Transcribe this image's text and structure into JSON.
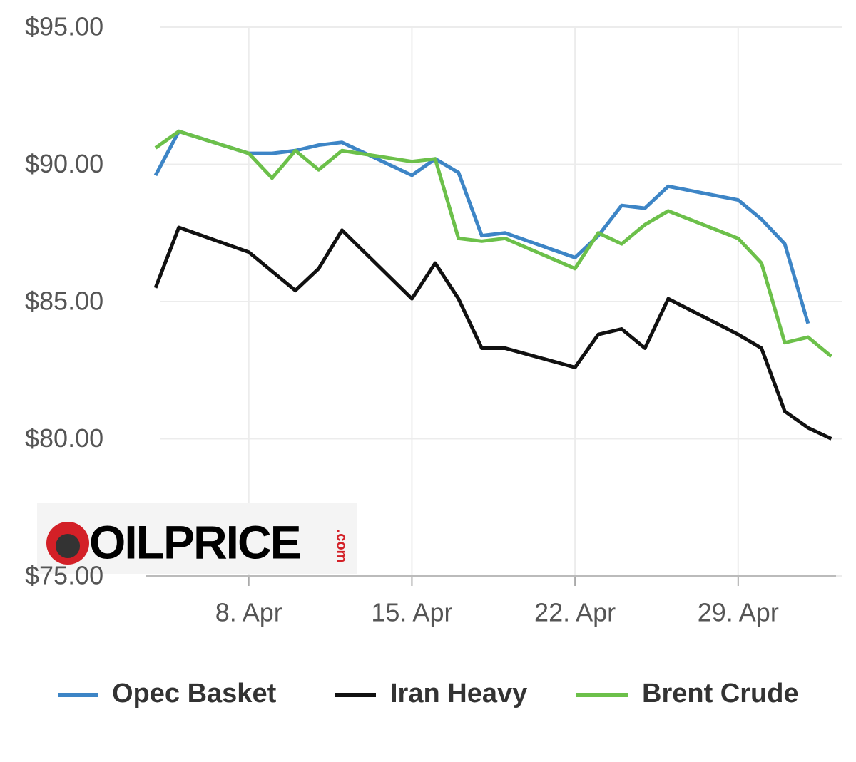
{
  "chart_data": {
    "type": "line",
    "logo": "OILPRICE",
    "logo_suffix": ".com",
    "x": [
      4,
      5,
      8,
      9,
      10,
      11,
      12,
      15,
      16,
      17,
      18,
      19,
      22,
      23,
      24,
      25,
      26,
      29,
      30,
      31,
      32,
      33
    ],
    "series": [
      {
        "name": "Opec Basket",
        "color": "#3d85c6",
        "values": [
          89.6,
          91.2,
          90.4,
          90.4,
          90.5,
          90.7,
          90.8,
          89.6,
          90.2,
          89.7,
          87.4,
          87.5,
          86.6,
          87.4,
          88.5,
          88.4,
          89.2,
          88.7,
          88.0,
          87.1,
          84.2,
          null
        ]
      },
      {
        "name": "Iran Heavy",
        "color": "#111111",
        "values": [
          85.5,
          87.7,
          86.8,
          86.1,
          85.4,
          86.2,
          87.6,
          85.1,
          86.4,
          85.1,
          83.3,
          83.3,
          82.6,
          83.8,
          84.0,
          83.3,
          85.1,
          83.8,
          83.3,
          81.0,
          80.4,
          80.0
        ]
      },
      {
        "name": "Brent Crude",
        "color": "#6cc04a",
        "values": [
          90.6,
          91.2,
          90.4,
          89.5,
          90.5,
          89.8,
          90.5,
          90.1,
          90.2,
          87.3,
          87.2,
          87.3,
          86.2,
          87.5,
          87.1,
          87.8,
          88.3,
          87.3,
          86.4,
          83.5,
          83.7,
          83.0
        ]
      }
    ],
    "xlim": [
      3.6,
      33.2
    ],
    "xticks": [
      {
        "value": 8,
        "label": "8. Apr"
      },
      {
        "value": 15,
        "label": "15. Apr"
      },
      {
        "value": 22,
        "label": "22. Apr"
      },
      {
        "value": 29,
        "label": "29. Apr"
      }
    ],
    "ylim": [
      75,
      95
    ],
    "yticks": [
      {
        "value": 75,
        "label": "$75.00"
      },
      {
        "value": 80,
        "label": "$80.00"
      },
      {
        "value": 85,
        "label": "$85.00"
      },
      {
        "value": 90,
        "label": "$90.00"
      },
      {
        "value": 95,
        "label": "$95.00"
      }
    ],
    "grid": true,
    "legend": "bottom"
  }
}
